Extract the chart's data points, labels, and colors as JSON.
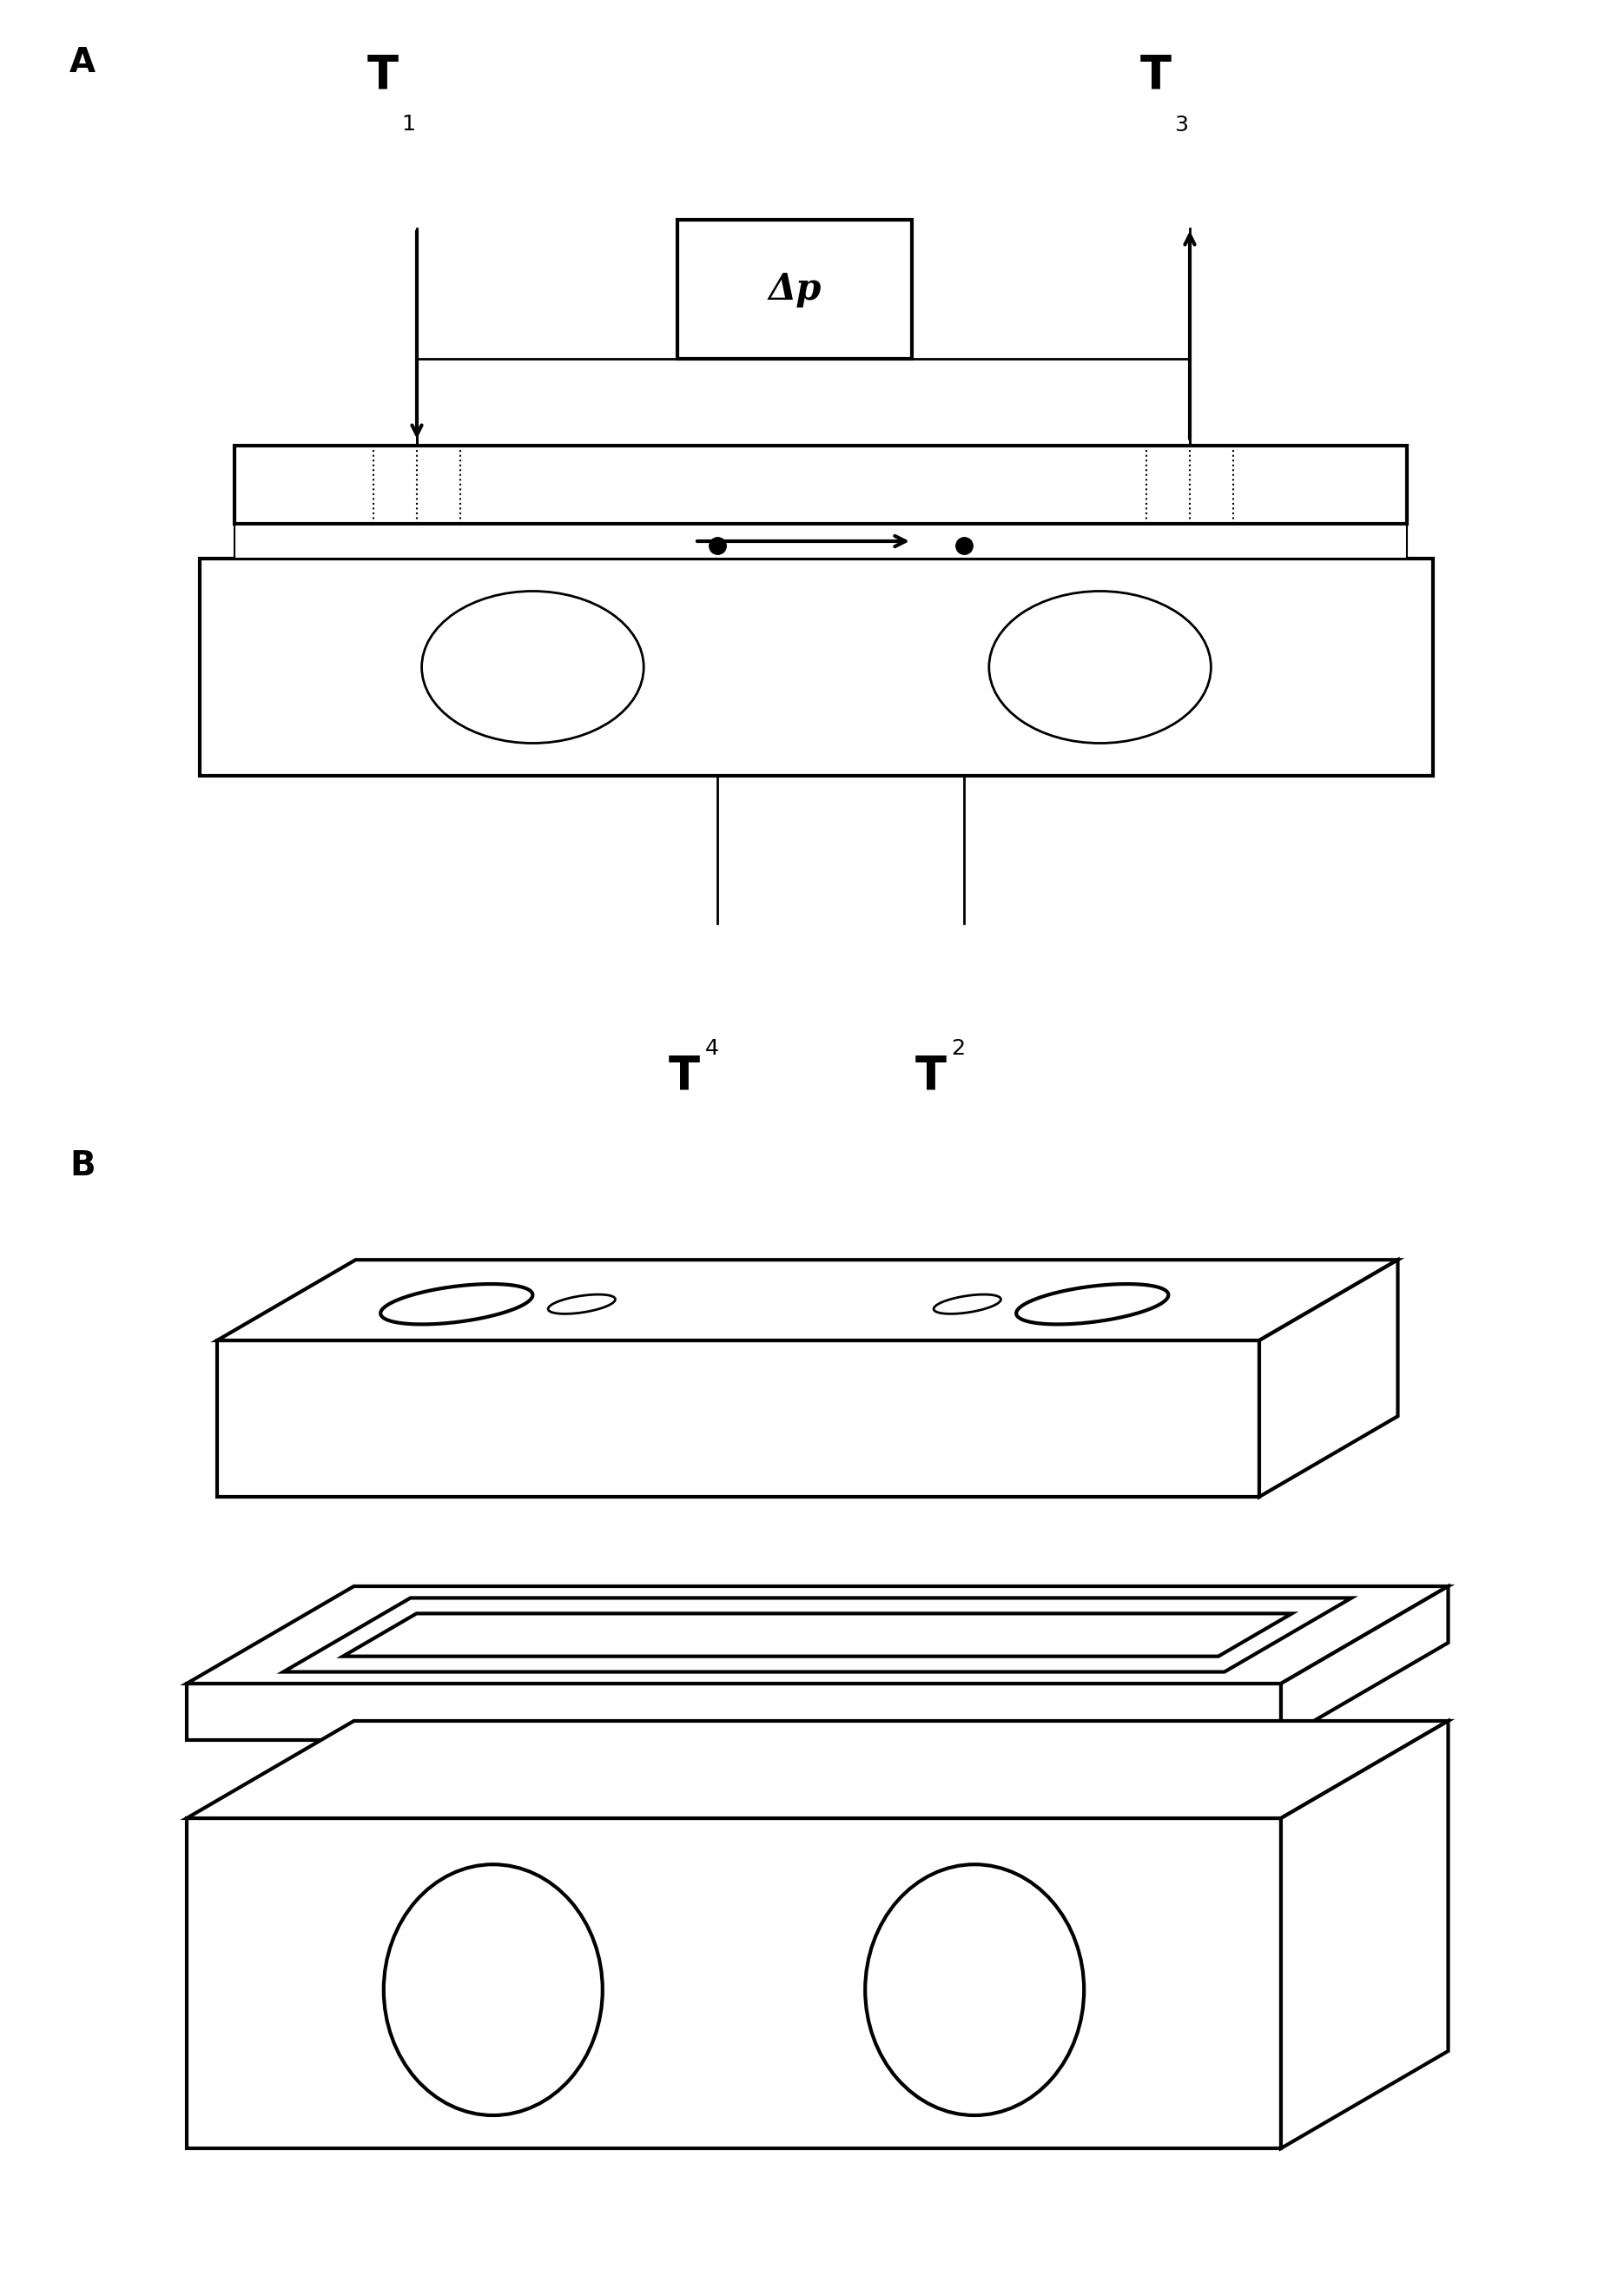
{
  "bg_color": "#ffffff",
  "line_color": "#000000",
  "fig_width": 18.55,
  "fig_height": 26.43,
  "label_A": "A",
  "label_B": "B",
  "delta_p": "Δp"
}
